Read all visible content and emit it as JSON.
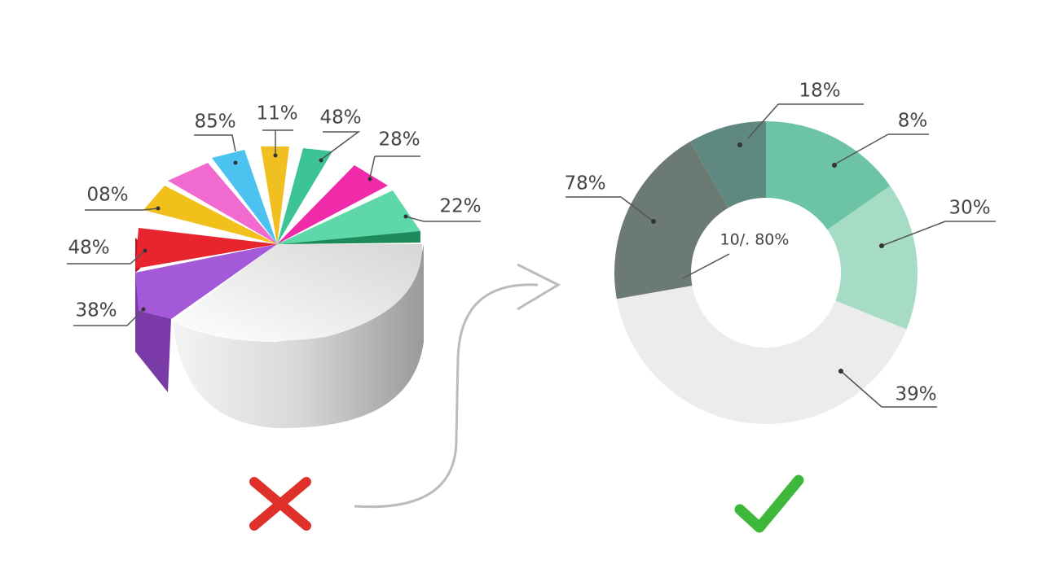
{
  "left_chart": {
    "labels": [
      "85%",
      "11%",
      "48%",
      "28%",
      "22%",
      "08%",
      "48%",
      "38%"
    ]
  },
  "right_chart": {
    "labels": [
      "18%",
      "8%",
      "30%",
      "78%",
      "39%"
    ],
    "center_label": "10/. 80%"
  }
}
